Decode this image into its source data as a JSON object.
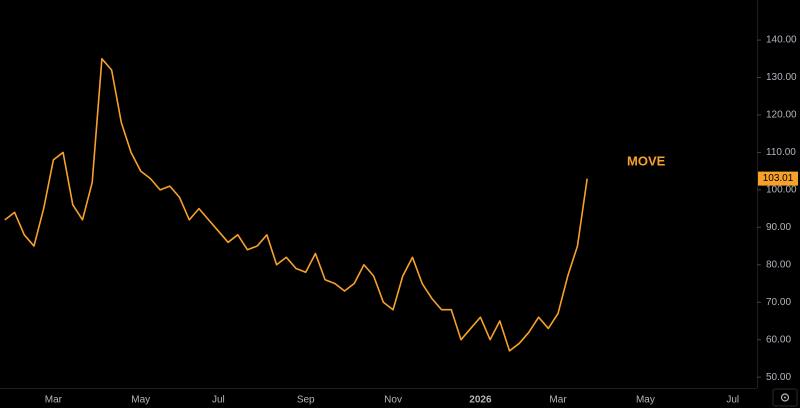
{
  "chart_data": {
    "type": "line",
    "categories": [
      null,
      null,
      null,
      null,
      null,
      "Mar",
      null,
      null,
      null,
      null,
      null,
      null,
      null,
      null,
      "May",
      null,
      null,
      null,
      null,
      null,
      null,
      null,
      "Jul",
      null,
      null,
      null,
      null,
      null,
      null,
      null,
      null,
      "Sep",
      null,
      null,
      null,
      null,
      null,
      null,
      null,
      null,
      "Nov",
      null,
      null,
      null,
      null,
      null,
      null,
      null,
      null,
      "2026",
      null,
      null,
      null,
      null,
      null,
      null,
      null,
      "Mar",
      null,
      null,
      null,
      null,
      null,
      null,
      null,
      null,
      "May",
      null,
      null,
      null,
      null,
      null,
      null,
      null,
      null,
      "Jul",
      null,
      null
    ],
    "series": [
      {
        "name": "MOVE",
        "color": "#f7a12b",
        "values": [
          92,
          94,
          88,
          85,
          95,
          108,
          110,
          96,
          92,
          102,
          135,
          132,
          118,
          110,
          105,
          103,
          100,
          101,
          98,
          92,
          95,
          92,
          89,
          86,
          88,
          84,
          85,
          88,
          80,
          82,
          79,
          78,
          83,
          76,
          75,
          73,
          75,
          80,
          77,
          70,
          68,
          77,
          82,
          75,
          71,
          68,
          68,
          60,
          63,
          66,
          60,
          65,
          57,
          59,
          62,
          66,
          63,
          67,
          77,
          85,
          103.01,
          null,
          null,
          null,
          null,
          null,
          null,
          null,
          null,
          null,
          null,
          null,
          null,
          null,
          null,
          null,
          null,
          null
        ]
      }
    ],
    "ylim": [
      47.1,
      150.7
    ],
    "yticks": [
      {
        "value": 50,
        "label": "50.00"
      },
      {
        "value": 60,
        "label": "60.00"
      },
      {
        "value": 70,
        "label": "70.00"
      },
      {
        "value": 80,
        "label": "80.00"
      },
      {
        "value": 90,
        "label": "90.00"
      },
      {
        "value": 100,
        "label": "100.00"
      },
      {
        "value": 110,
        "label": "110.00"
      },
      {
        "value": 120,
        "label": "120.00"
      },
      {
        "value": 130,
        "label": "130.00"
      },
      {
        "value": 140,
        "label": "140.00"
      }
    ],
    "grid": false
  }
}
